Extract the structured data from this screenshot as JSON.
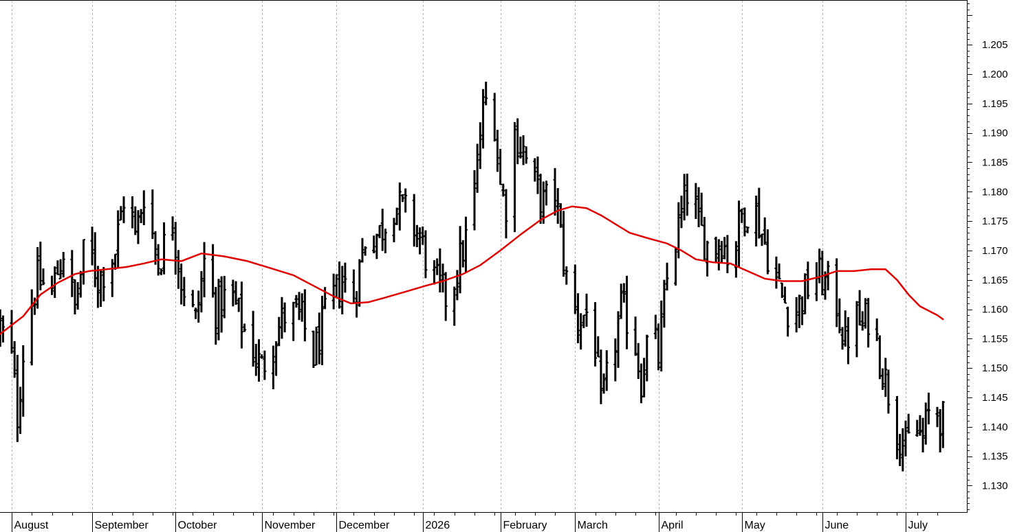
{
  "chart_data": {
    "type": "ohlc",
    "grid": "vertical dashed at month starts",
    "y_axis": {
      "position": "right",
      "ylim": [
        1.1255,
        1.2125
      ],
      "ticks": [
        "1.130",
        "1.135",
        "1.140",
        "1.145",
        "1.150",
        "1.155",
        "1.160",
        "1.165",
        "1.170",
        "1.175",
        "1.180",
        "1.185",
        "1.190",
        "1.195",
        "1.200",
        "1.205"
      ],
      "tick_values": [
        1.13,
        1.135,
        1.14,
        1.145,
        1.15,
        1.155,
        1.16,
        1.165,
        1.17,
        1.175,
        1.18,
        1.185,
        1.19,
        1.195,
        1.2,
        1.205
      ]
    },
    "x_axis": {
      "position": "bottom",
      "months": [
        {
          "label": "August",
          "day": 0
        },
        {
          "label": "September",
          "day": 28
        },
        {
          "label": "October",
          "day": 57
        },
        {
          "label": "November",
          "day": 87
        },
        {
          "label": "December",
          "day": 113
        },
        {
          "label": "2026",
          "day": 143
        },
        {
          "label": "February",
          "day": 170
        },
        {
          "label": "March",
          "day": 196
        },
        {
          "label": "April",
          "day": 225
        },
        {
          "label": "May",
          "day": 254
        },
        {
          "label": "June",
          "day": 282
        },
        {
          "label": "July",
          "day": 311
        }
      ],
      "xlim": [
        -4,
        326
      ]
    },
    "price_anchors": [
      [
        -4,
        1.157
      ],
      [
        0,
        1.152
      ],
      [
        2,
        1.142
      ],
      [
        5,
        1.158
      ],
      [
        9,
        1.165
      ],
      [
        14,
        1.163
      ],
      [
        18,
        1.17
      ],
      [
        22,
        1.16
      ],
      [
        26,
        1.172
      ],
      [
        30,
        1.165
      ],
      [
        36,
        1.17
      ],
      [
        40,
        1.182
      ],
      [
        43,
        1.172
      ],
      [
        46,
        1.18
      ],
      [
        51,
        1.168
      ],
      [
        56,
        1.175
      ],
      [
        59,
        1.165
      ],
      [
        64,
        1.158
      ],
      [
        67,
        1.168
      ],
      [
        71,
        1.16
      ],
      [
        76,
        1.163
      ],
      [
        82,
        1.155
      ],
      [
        87,
        1.15
      ],
      [
        91,
        1.155
      ],
      [
        96,
        1.16
      ],
      [
        101,
        1.158
      ],
      [
        105,
        1.152
      ],
      [
        110,
        1.16
      ],
      [
        115,
        1.165
      ],
      [
        119,
        1.162
      ],
      [
        123,
        1.172
      ],
      [
        128,
        1.173
      ],
      [
        133,
        1.178
      ],
      [
        138,
        1.176
      ],
      [
        142,
        1.172
      ],
      [
        147,
        1.165
      ],
      [
        151,
        1.162
      ],
      [
        154,
        1.165
      ],
      [
        158,
        1.172
      ],
      [
        161,
        1.18
      ],
      [
        164,
        1.194
      ],
      [
        167,
        1.198
      ],
      [
        170,
        1.181
      ],
      [
        172,
        1.178
      ],
      [
        175,
        1.19
      ],
      [
        178,
        1.187
      ],
      [
        181,
        1.182
      ],
      [
        185,
        1.178
      ],
      [
        189,
        1.18
      ],
      [
        193,
        1.165
      ],
      [
        197,
        1.158
      ],
      [
        201,
        1.16
      ],
      [
        203,
        1.154
      ],
      [
        205,
        1.143
      ],
      [
        208,
        1.15
      ],
      [
        212,
        1.16
      ],
      [
        216,
        1.157
      ],
      [
        219,
        1.148
      ],
      [
        222,
        1.157
      ],
      [
        225,
        1.152
      ],
      [
        228,
        1.165
      ],
      [
        231,
        1.172
      ],
      [
        234,
        1.178
      ],
      [
        236,
        1.182
      ],
      [
        239,
        1.174
      ],
      [
        243,
        1.17
      ],
      [
        247,
        1.172
      ],
      [
        250,
        1.168
      ],
      [
        254,
        1.176
      ],
      [
        258,
        1.178
      ],
      [
        261,
        1.173
      ],
      [
        264,
        1.168
      ],
      [
        268,
        1.162
      ],
      [
        272,
        1.159
      ],
      [
        276,
        1.163
      ],
      [
        280,
        1.166
      ],
      [
        284,
        1.164
      ],
      [
        287,
        1.161
      ],
      [
        290,
        1.154
      ],
      [
        293,
        1.159
      ],
      [
        296,
        1.157
      ],
      [
        299,
        1.16
      ],
      [
        302,
        1.152
      ],
      [
        305,
        1.146
      ],
      [
        308,
        1.14
      ],
      [
        311,
        1.136
      ],
      [
        314,
        1.14
      ],
      [
        317,
        1.138
      ],
      [
        320,
        1.144
      ],
      [
        324,
        1.141
      ]
    ],
    "moving_average": {
      "color": "#e00000",
      "points": [
        [
          -4,
          1.1558
        ],
        [
          4,
          1.1588
        ],
        [
          10,
          1.1625
        ],
        [
          16,
          1.1645
        ],
        [
          22,
          1.166
        ],
        [
          27,
          1.1665
        ],
        [
          33,
          1.1668
        ],
        [
          40,
          1.1672
        ],
        [
          46,
          1.1678
        ],
        [
          52,
          1.1685
        ],
        [
          59,
          1.1682
        ],
        [
          66,
          1.1695
        ],
        [
          74,
          1.169
        ],
        [
          82,
          1.1682
        ],
        [
          90,
          1.167
        ],
        [
          98,
          1.1658
        ],
        [
          105,
          1.164
        ],
        [
          112,
          1.1622
        ],
        [
          118,
          1.161
        ],
        [
          124,
          1.1612
        ],
        [
          130,
          1.162
        ],
        [
          137,
          1.163
        ],
        [
          144,
          1.164
        ],
        [
          150,
          1.1648
        ],
        [
          157,
          1.166
        ],
        [
          163,
          1.1675
        ],
        [
          170,
          1.17
        ],
        [
          177,
          1.1727
        ],
        [
          184,
          1.1752
        ],
        [
          190,
          1.1768
        ],
        [
          195,
          1.1775
        ],
        [
          200,
          1.1772
        ],
        [
          205,
          1.176
        ],
        [
          210,
          1.1745
        ],
        [
          215,
          1.173
        ],
        [
          222,
          1.172
        ],
        [
          228,
          1.1712
        ],
        [
          233,
          1.17
        ],
        [
          238,
          1.1685
        ],
        [
          244,
          1.168
        ],
        [
          250,
          1.1678
        ],
        [
          256,
          1.1665
        ],
        [
          262,
          1.1652
        ],
        [
          268,
          1.1648
        ],
        [
          275,
          1.1648
        ],
        [
          281,
          1.1655
        ],
        [
          287,
          1.1665
        ],
        [
          293,
          1.1665
        ],
        [
          299,
          1.1668
        ],
        [
          304,
          1.1668
        ],
        [
          308,
          1.165
        ],
        [
          312,
          1.1625
        ],
        [
          316,
          1.1605
        ],
        [
          322,
          1.159
        ],
        [
          324,
          1.1583
        ]
      ]
    },
    "bar_color": "#000000"
  }
}
